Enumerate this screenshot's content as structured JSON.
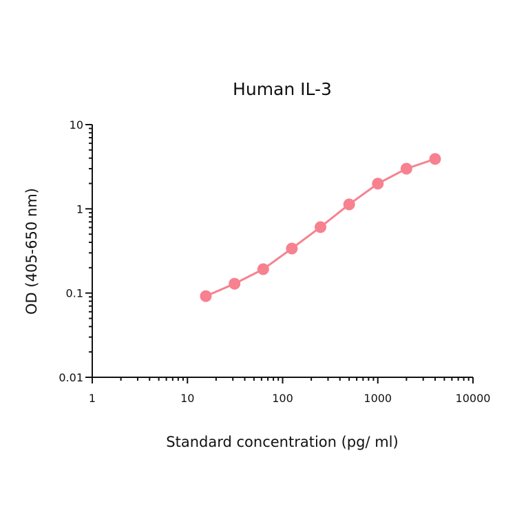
{
  "chart_data": {
    "type": "line",
    "title": "Human IL-3",
    "xlabel": "Standard concentration (pg/ ml)",
    "ylabel": "OD (405-650 nm)",
    "xscale": "log",
    "yscale": "log",
    "xlim": [
      1,
      10000
    ],
    "ylim": [
      0.01,
      10
    ],
    "x_ticks": [
      "1",
      "10",
      "100",
      "1000",
      "10000"
    ],
    "y_ticks": [
      "0.01",
      "0.1",
      "1",
      "10"
    ],
    "grid": false,
    "legend": null,
    "series": [
      {
        "name": "Human IL-3",
        "color": "#F7818F",
        "marker": "circle",
        "x": [
          15.6,
          31.25,
          62.5,
          125,
          250,
          500,
          1000,
          2000,
          4000
        ],
        "values": [
          0.092,
          0.129,
          0.192,
          0.338,
          0.607,
          1.13,
          1.99,
          3.0,
          3.91
        ]
      }
    ]
  },
  "plot": {
    "title": "Human IL-3",
    "xlabel": "Standard concentration (pg/ ml)",
    "ylabel": "OD (405-650 nm)"
  }
}
